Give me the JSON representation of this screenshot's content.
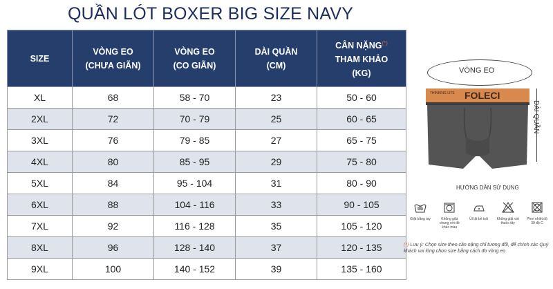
{
  "title": "QUẦN LÓT BOXER BIG SIZE NAVY",
  "table": {
    "headers": [
      [
        "SIZE"
      ],
      [
        "VÒNG EO",
        "(CHƯA GIÃN)"
      ],
      [
        "VÒNG EO",
        "(CO GIÃN)"
      ],
      [
        "DÀI QUẦN",
        "(CM)"
      ],
      [
        "CÂN NẶNG",
        "THAM KHẢO",
        "(KG)"
      ]
    ],
    "header_mark": "(*)",
    "rows": [
      [
        "XL",
        "68",
        "58 - 70",
        "23",
        "50 - 60"
      ],
      [
        "2XL",
        "72",
        "70 - 79",
        "25",
        "60 - 65"
      ],
      [
        "3XL",
        "76",
        "79 - 85",
        "27",
        "65 - 75"
      ],
      [
        "4XL",
        "80",
        "85 - 95",
        "29",
        "75 - 80"
      ],
      [
        "5XL",
        "84",
        "95 - 104",
        "31",
        "80 - 90"
      ],
      [
        "6XL",
        "88",
        "104 - 116",
        "33",
        "90 - 105"
      ],
      [
        "7XL",
        "92",
        "116 - 128",
        "35",
        "105 - 120"
      ],
      [
        "8XL",
        "96",
        "128 - 140",
        "37",
        "120 - 135"
      ],
      [
        "9XL",
        "100",
        "140 - 152",
        "39",
        "135 - 160"
      ]
    ]
  },
  "diagram": {
    "waist_label": "VÒNG EO",
    "length_label": "DÀI QUẦN",
    "brand": "FOLECI",
    "brand_small": "THINKING LIFE"
  },
  "care": {
    "title": "HƯỚNG DẪN SỬ DỤNG",
    "items": [
      {
        "icon": "hand-wash-icon",
        "caption": "Giặt bằng tay"
      },
      {
        "icon": "no-mix-wash-icon",
        "caption": "Không giặt chung với đồ khác màu"
      },
      {
        "icon": "iron-icon",
        "caption": "Ủi lật bề trái"
      },
      {
        "icon": "no-bleach-icon",
        "caption": "Không giặt với thuốc tẩy"
      },
      {
        "icon": "dry-30c-icon",
        "caption": "Phơi nhiệt độ 30 độ C"
      }
    ]
  },
  "note": {
    "mark": "(*)",
    "text": "Lưu ý: Chọn size theo cân nặng chỉ tương đối, để chính xác Quý khách vui lòng chọn size bằng cách đo vòng eo"
  },
  "colors": {
    "header_bg": "#263e6c",
    "alt_row": "#dfe3ec",
    "band": "#d9894e",
    "fabric": "#545454"
  }
}
